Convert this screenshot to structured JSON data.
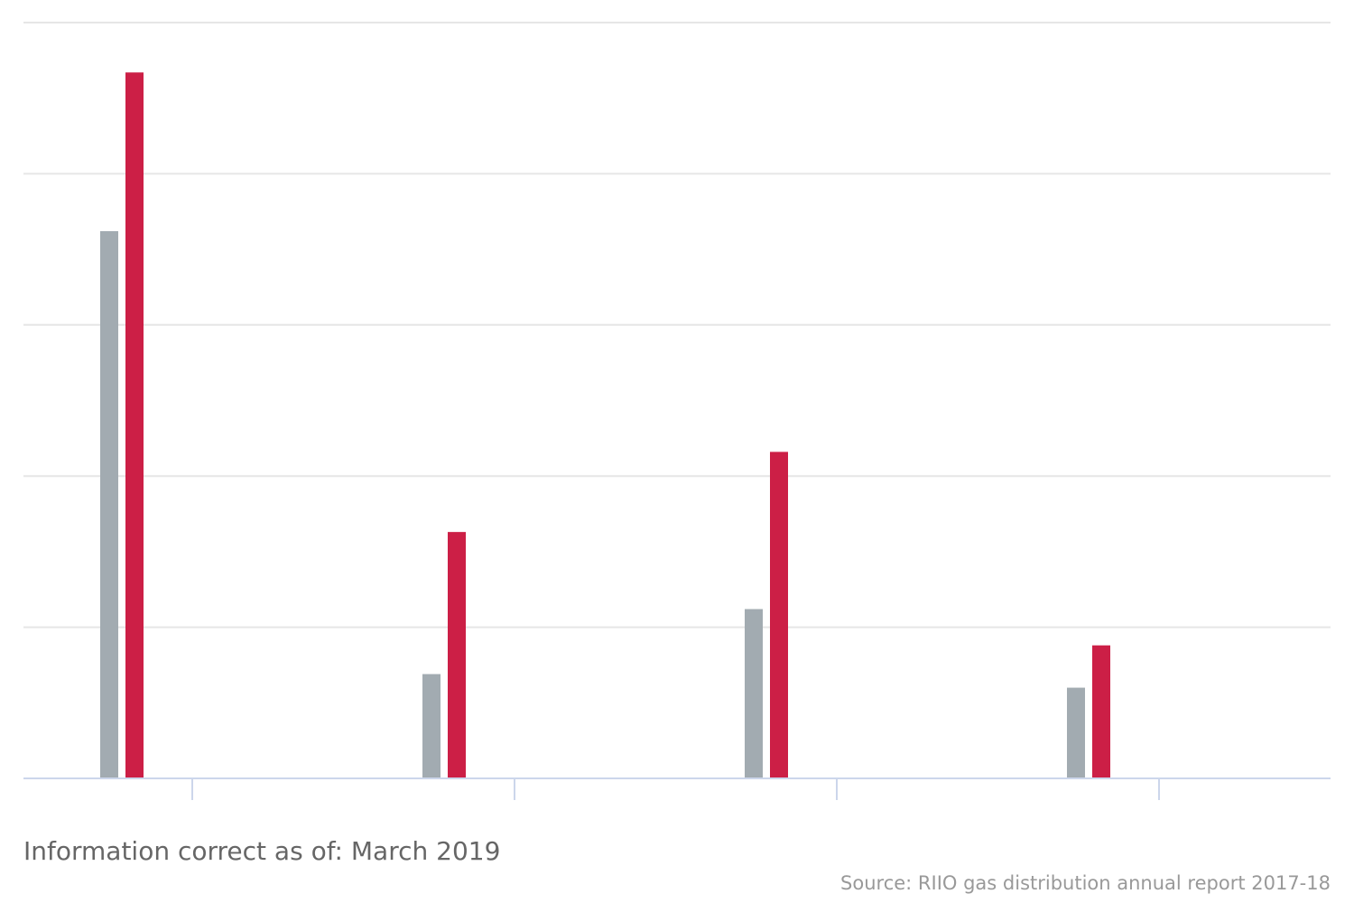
{
  "chart_data": {
    "type": "bar",
    "categories": [
      "",
      "",
      "",
      ""
    ],
    "series": [
      {
        "values": [
          3.62,
          0.69,
          1.12,
          0.6
        ],
        "color": "#a2abb1"
      },
      {
        "values": [
          4.67,
          1.63,
          2.16,
          0.88
        ],
        "color": "#cc1f46"
      }
    ],
    "ylim": [
      0,
      5
    ],
    "yticks": [
      0,
      1,
      2,
      3,
      4,
      5
    ],
    "grid": true,
    "legend": "none",
    "notes": {
      "info": "Information correct as of: March 2019",
      "source": "Source: RIIO gas distribution annual report 2017-18"
    }
  }
}
